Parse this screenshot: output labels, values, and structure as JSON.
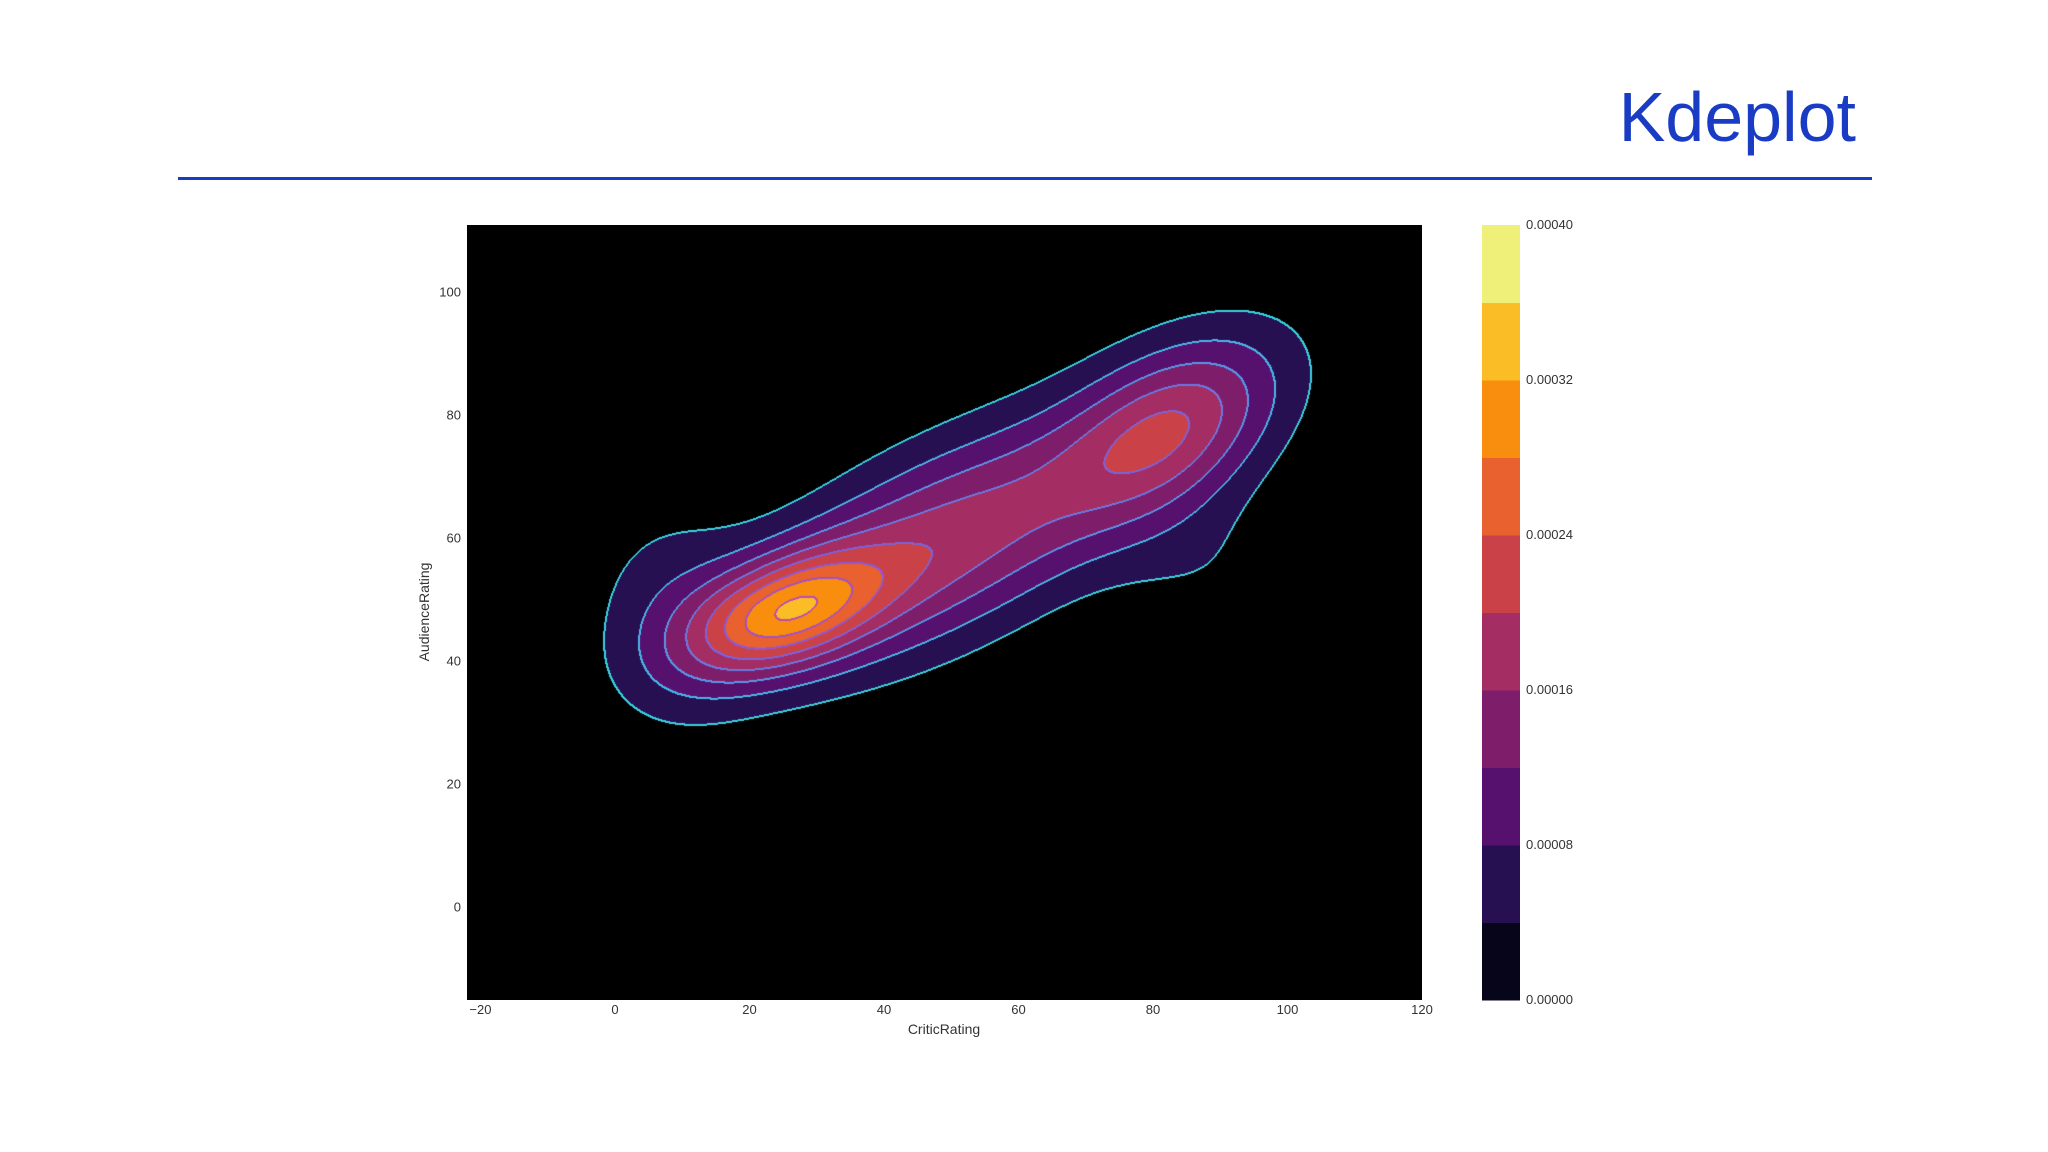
{
  "slide": {
    "title": "Kdeplot"
  },
  "chart_data": {
    "type": "heatmap",
    "kind": "kde-contour",
    "title": "",
    "xlabel": "CriticRating",
    "ylabel": "AudienceRating",
    "xlim": [
      -22,
      120
    ],
    "ylim": [
      -15,
      111
    ],
    "xticks": [
      -20,
      0,
      20,
      40,
      60,
      80,
      100,
      120
    ],
    "yticks": [
      0,
      20,
      40,
      60,
      80,
      100
    ],
    "xtick_labels": [
      "−20",
      "0",
      "20",
      "40",
      "60",
      "80",
      "100",
      "120"
    ],
    "ytick_labels": [
      "0",
      "20",
      "40",
      "60",
      "80",
      "100"
    ],
    "background": "#000000",
    "colormap": "inferno",
    "levels": [
      4e-05,
      8e-05,
      0.00012,
      0.00016,
      0.0002,
      0.00024,
      0.00028,
      0.00032,
      0.00036
    ],
    "colorbar": {
      "min": 0.0,
      "max": 0.0004,
      "tick_values": [
        0.0,
        8e-05,
        0.00016,
        0.00024,
        0.00032,
        0.0004
      ],
      "tick_labels": [
        "0.00000",
        "0.00008",
        "0.00016",
        "0.00024",
        "0.00032",
        "0.00040"
      ],
      "colors": [
        "#07051a",
        "#271052",
        "#56106e",
        "#7e1e6b",
        "#a42d63",
        "#cb4148",
        "#e8612e",
        "#f98d0e",
        "#fbbd26",
        "#eef07a"
      ]
    },
    "components": [
      {
        "center": [
          25,
          48
        ],
        "sigma": [
          11,
          6
        ],
        "angle_deg": 25,
        "weight": 0.000235
      },
      {
        "center": [
          45,
          58
        ],
        "sigma": [
          20,
          10
        ],
        "angle_deg": 30,
        "weight": 0.000125
      },
      {
        "center": [
          83,
          78
        ],
        "sigma": [
          13,
          8
        ],
        "angle_deg": 40,
        "weight": 0.000155
      },
      {
        "center": [
          62,
          66
        ],
        "sigma": [
          25,
          10
        ],
        "angle_deg": 35,
        "weight": 7e-05
      },
      {
        "center": [
          8,
          48
        ],
        "sigma": [
          9,
          13
        ],
        "angle_deg": 0,
        "weight": 5.5e-05
      },
      {
        "center": [
          88,
          55
        ],
        "sigma": [
          10,
          9
        ],
        "angle_deg": 0,
        "weight": 3e-05
      }
    ]
  }
}
